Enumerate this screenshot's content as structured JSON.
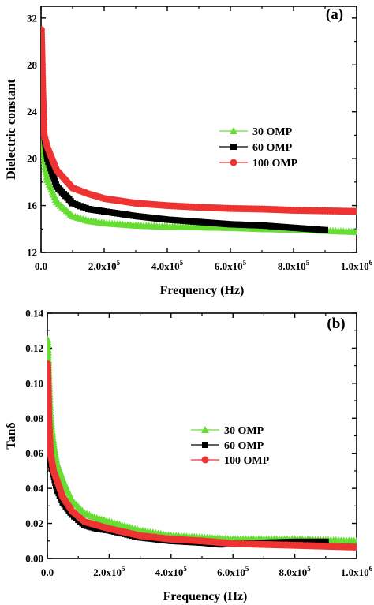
{
  "chart_data": [
    {
      "type": "scatter",
      "panel_label": "(a)",
      "xlabel": "Frequency (Hz)",
      "ylabel": "Dielectric constant",
      "xlim": [
        0,
        1000000
      ],
      "ylim": [
        12,
        33
      ],
      "xticks": [
        0,
        200000,
        400000,
        600000,
        800000,
        1000000
      ],
      "xtick_labels": [
        "0.0",
        "2.0x10",
        "4.0x10",
        "6.0x10",
        "8.0x10",
        "1.0x10"
      ],
      "xtick_exponents": [
        "",
        "5",
        "5",
        "5",
        "5",
        "6"
      ],
      "yticks": [
        12,
        16,
        20,
        24,
        28,
        32
      ],
      "ytick_labels": [
        "12",
        "16",
        "20",
        "24",
        "28",
        "32"
      ],
      "legend_position": "middle-right",
      "series": [
        {
          "name": "30 OMP",
          "marker": "triangle",
          "color": "#66dd33",
          "x": [
            1000,
            5000,
            10000,
            20000,
            30000,
            50000,
            100000,
            150000,
            200000,
            300000,
            400000,
            500000,
            600000,
            700000,
            800000,
            900000,
            1000000
          ],
          "y": [
            28,
            22,
            20,
            18.2,
            17.6,
            16.3,
            15.1,
            14.7,
            14.5,
            14.3,
            14.2,
            14.15,
            14.1,
            14.0,
            13.95,
            13.85,
            13.75
          ]
        },
        {
          "name": "60 OMP",
          "marker": "square",
          "color": "#000000",
          "x": [
            1000,
            5000,
            10000,
            20000,
            30000,
            50000,
            100000,
            150000,
            200000,
            300000,
            400000,
            500000,
            600000,
            700000,
            800000,
            900000
          ],
          "y": [
            28.5,
            24,
            22,
            20,
            19.2,
            17.6,
            16.2,
            15.7,
            15.5,
            15.1,
            14.8,
            14.6,
            14.4,
            14.3,
            14.1,
            13.9
          ]
        },
        {
          "name": "100 OMP",
          "marker": "circle",
          "color": "#ee3333",
          "x": [
            1000,
            5000,
            10000,
            20000,
            30000,
            50000,
            100000,
            150000,
            200000,
            300000,
            400000,
            500000,
            600000,
            700000,
            800000,
            900000,
            1000000
          ],
          "y": [
            31,
            26,
            22,
            21,
            20.3,
            19,
            17.5,
            17.0,
            16.6,
            16.2,
            16.0,
            15.85,
            15.75,
            15.7,
            15.6,
            15.55,
            15.5
          ]
        }
      ]
    },
    {
      "type": "scatter",
      "panel_label": "(b)",
      "xlabel": "Frequency (Hz)",
      "ylabel": "Tanδ",
      "xlim": [
        0,
        1000000
      ],
      "ylim": [
        0,
        0.14
      ],
      "xticks": [
        0,
        200000,
        400000,
        600000,
        800000,
        1000000
      ],
      "xtick_labels": [
        "0.0",
        "2.0x10",
        "4.0x10",
        "6.0x10",
        "8.0x10",
        "1.0x10"
      ],
      "xtick_exponents": [
        "",
        "5",
        "5",
        "5",
        "5",
        "6"
      ],
      "yticks": [
        0,
        0.02,
        0.04,
        0.06,
        0.08,
        0.1,
        0.12,
        0.14
      ],
      "ytick_labels": [
        "0.00",
        "0.02",
        "0.04",
        "0.06",
        "0.08",
        "0.10",
        "0.12",
        "0.14"
      ],
      "legend_position": "middle-right",
      "series": [
        {
          "name": "30 OMP",
          "marker": "triangle",
          "color": "#66dd33",
          "x": [
            1000,
            5000,
            10000,
            20000,
            30000,
            50000,
            80000,
            120000,
            160000,
            200000,
            300000,
            400000,
            500000,
            600000,
            700000,
            800000,
            900000,
            1000000
          ],
          "y": [
            0.125,
            0.1,
            0.08,
            0.065,
            0.055,
            0.045,
            0.033,
            0.026,
            0.023,
            0.021,
            0.016,
            0.013,
            0.012,
            0.011,
            0.011,
            0.011,
            0.0105,
            0.01
          ]
        },
        {
          "name": "60 OMP",
          "marker": "square",
          "color": "#000000",
          "x": [
            1000,
            5000,
            10000,
            20000,
            30000,
            50000,
            80000,
            120000,
            160000,
            200000,
            300000,
            400000,
            500000,
            560000,
            700000,
            800000,
            900000
          ],
          "y": [
            0.085,
            0.07,
            0.055,
            0.048,
            0.04,
            0.032,
            0.025,
            0.019,
            0.017,
            0.016,
            0.012,
            0.01,
            0.009,
            0.008,
            0.009,
            0.0095,
            0.0095
          ]
        },
        {
          "name": "100 OMP",
          "marker": "circle",
          "color": "#ee3333",
          "x": [
            1000,
            5000,
            10000,
            20000,
            30000,
            50000,
            80000,
            120000,
            160000,
            200000,
            300000,
            400000,
            500000,
            600000,
            700000,
            800000,
            900000,
            1000000
          ],
          "y": [
            0.111,
            0.078,
            0.06,
            0.05,
            0.045,
            0.035,
            0.027,
            0.021,
            0.019,
            0.017,
            0.013,
            0.011,
            0.01,
            0.0085,
            0.008,
            0.0075,
            0.007,
            0.0065
          ]
        }
      ]
    }
  ]
}
